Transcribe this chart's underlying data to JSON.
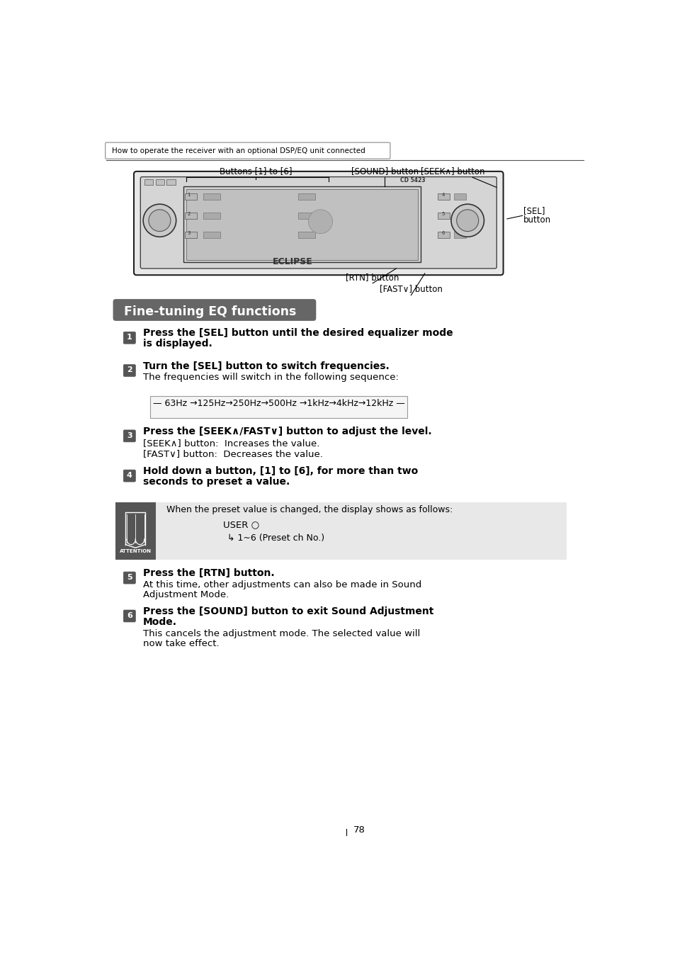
{
  "page_bg": "#ffffff",
  "header_text": "How to operate the receiver with an optional DSP/EQ unit connected",
  "section_title": "Fine-tuning EQ functions",
  "section_title_bg": "#666666",
  "section_title_color": "#ffffff",
  "step2_normal": "The frequencies will switch in the following sequence:",
  "freq_sequence": "— 63Hz →125Hz→250Hz→500Hz →1kHz→4kHz→12kHz —",
  "step3_line1": "[SEEK∧] button:  Increases the value.",
  "step3_line2": "[FAST∨] button:  Decreases the value.",
  "attention_bg": "#e8e8e8",
  "attention_icon_bg": "#555555",
  "attention_text": "When the preset value is changed, the display shows as follows:",
  "attention_user": "USER ○",
  "attention_preset": "↳ 1~6 (Preset ch No.)",
  "step5_normal1": "At this time, other adjustments can also be made in Sound",
  "step5_normal2": "Adjustment Mode.",
  "step6_normal1": "This cancels the adjustment mode. The selected value will",
  "step6_normal2": "now take effect.",
  "page_num": "78",
  "btn_labels_16": "Buttons [1] to [6]",
  "sound_btn": "[SOUND] button",
  "seek_btn": "[SEEK∧] button",
  "sel_btn_line1": "[SEL]",
  "sel_btn_line2": "button",
  "rtn_btn": "[RTN] button",
  "fast_btn": "[FAST∨] button"
}
